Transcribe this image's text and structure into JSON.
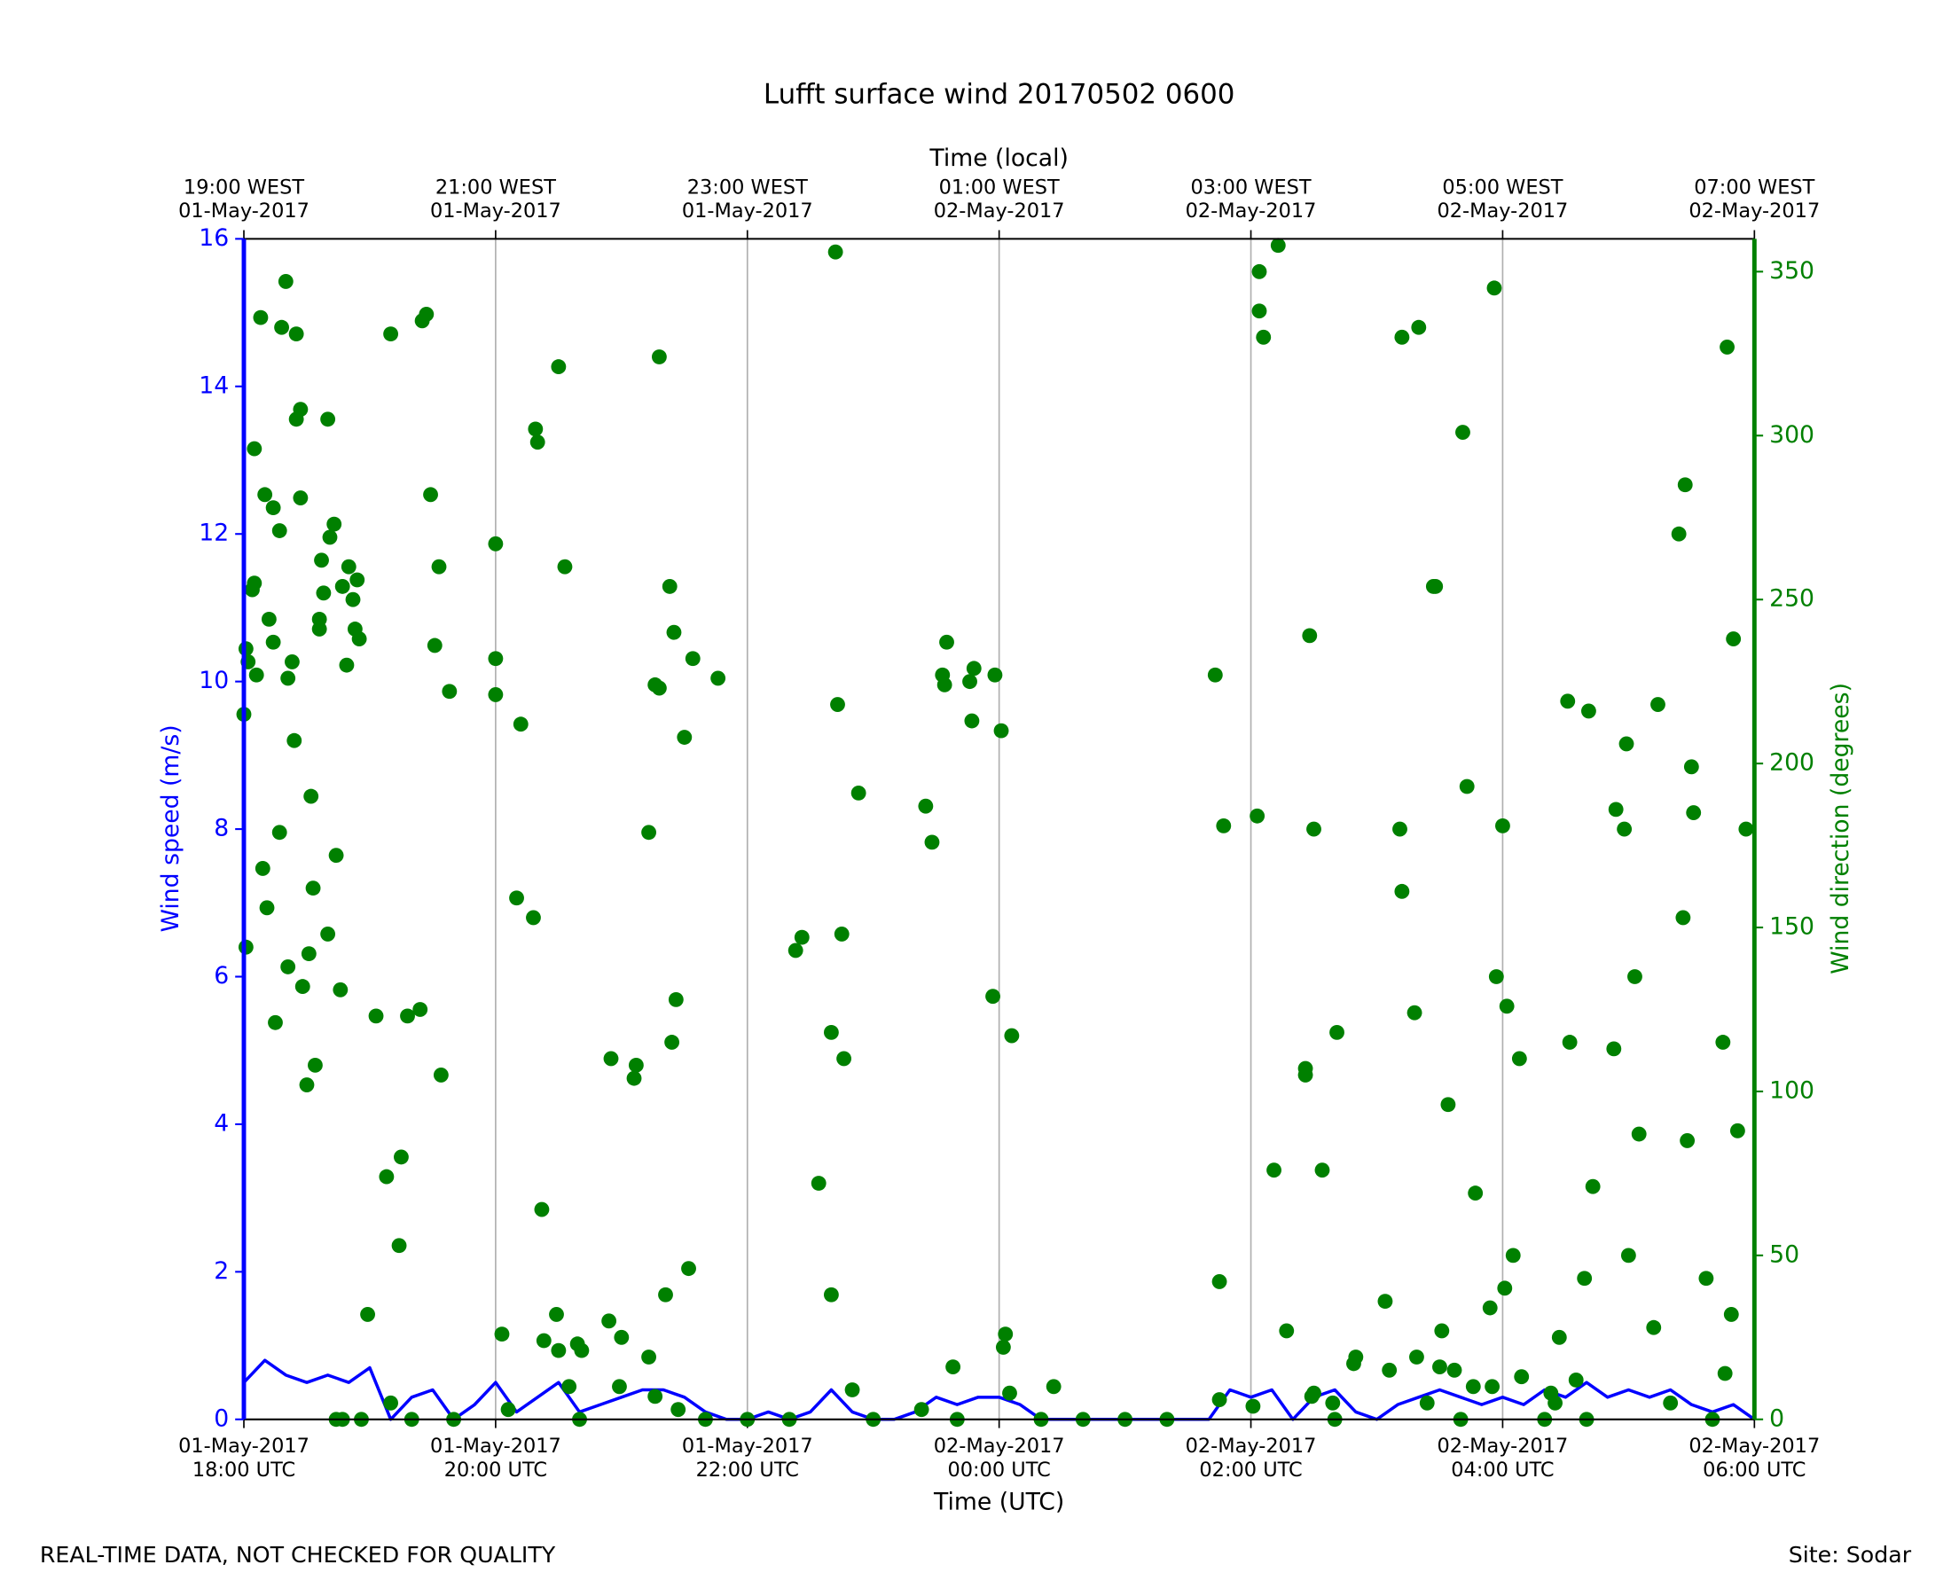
{
  "chart_data": {
    "type": "line+scatter",
    "title": "Lufft surface wind 20170502 0600",
    "xlabel": "Time (UTC)",
    "x2label": "Time (local)",
    "ylabel": "Wind speed (m/s)",
    "y2label": "Wind direction (degrees)",
    "footer_left": "REAL-TIME DATA, NOT CHECKED FOR QUALITY",
    "footer_right": "Site: Sodar",
    "xlim": [
      "2017-05-01 18:00",
      "2017-05-02 06:00"
    ],
    "xticks": [
      {
        "value": "2017-05-01 18:00",
        "label": [
          "01-May-2017",
          "18:00 UTC"
        ]
      },
      {
        "value": "2017-05-01 20:00",
        "label": [
          "01-May-2017",
          "20:00 UTC"
        ]
      },
      {
        "value": "2017-05-01 22:00",
        "label": [
          "01-May-2017",
          "22:00 UTC"
        ]
      },
      {
        "value": "2017-05-02 00:00",
        "label": [
          "02-May-2017",
          "00:00 UTC"
        ]
      },
      {
        "value": "2017-05-02 02:00",
        "label": [
          "02-May-2017",
          "02:00 UTC"
        ]
      },
      {
        "value": "2017-05-02 04:00",
        "label": [
          "02-May-2017",
          "04:00 UTC"
        ]
      },
      {
        "value": "2017-05-02 06:00",
        "label": [
          "02-May-2017",
          "06:00 UTC"
        ]
      }
    ],
    "x2ticks": [
      {
        "value": "2017-05-01 18:00",
        "label": [
          "19:00 WEST",
          "01-May-2017"
        ]
      },
      {
        "value": "2017-05-01 20:00",
        "label": [
          "21:00 WEST",
          "01-May-2017"
        ]
      },
      {
        "value": "2017-05-01 22:00",
        "label": [
          "23:00 WEST",
          "01-May-2017"
        ]
      },
      {
        "value": "2017-05-02 00:00",
        "label": [
          "01:00 WEST",
          "02-May-2017"
        ]
      },
      {
        "value": "2017-05-02 02:00",
        "label": [
          "03:00 WEST",
          "02-May-2017"
        ]
      },
      {
        "value": "2017-05-02 04:00",
        "label": [
          "05:00 WEST",
          "02-May-2017"
        ]
      },
      {
        "value": "2017-05-02 06:00",
        "label": [
          "07:00 WEST",
          "02-May-2017"
        ]
      }
    ],
    "ylim": [
      0,
      16
    ],
    "yticks": [
      0,
      2,
      4,
      6,
      8,
      10,
      12,
      14,
      16
    ],
    "y2lim": [
      0,
      360
    ],
    "y2ticks": [
      0,
      50,
      100,
      150,
      200,
      250,
      300,
      350
    ],
    "grid": "x",
    "series": [
      {
        "type": "line",
        "axis": "y",
        "color": "#0000ff",
        "x": [
          "2017-05-01 18:00",
          "2017-05-01 18:10",
          "2017-05-01 18:20",
          "2017-05-01 18:30",
          "2017-05-01 18:40",
          "2017-05-01 18:50",
          "2017-05-01 19:00",
          "2017-05-01 19:10",
          "2017-05-01 19:20",
          "2017-05-01 19:30",
          "2017-05-01 19:40",
          "2017-05-01 19:50",
          "2017-05-01 20:00",
          "2017-05-01 20:10",
          "2017-05-01 20:20",
          "2017-05-01 20:30",
          "2017-05-01 20:40",
          "2017-05-01 20:50",
          "2017-05-01 21:00",
          "2017-05-01 21:10",
          "2017-05-01 21:20",
          "2017-05-01 21:30",
          "2017-05-01 21:40",
          "2017-05-01 21:50",
          "2017-05-01 22:00",
          "2017-05-01 22:10",
          "2017-05-01 22:20",
          "2017-05-01 22:30",
          "2017-05-01 22:40",
          "2017-05-01 22:50",
          "2017-05-01 23:00",
          "2017-05-01 23:10",
          "2017-05-01 23:20",
          "2017-05-01 23:30",
          "2017-05-01 23:40",
          "2017-05-01 23:50",
          "2017-05-02 00:00",
          "2017-05-02 00:10",
          "2017-05-02 00:20",
          "2017-05-02 00:30",
          "2017-05-02 00:40",
          "2017-05-02 00:50",
          "2017-05-02 01:00",
          "2017-05-02 01:10",
          "2017-05-02 01:20",
          "2017-05-02 01:30",
          "2017-05-02 01:40",
          "2017-05-02 01:50",
          "2017-05-02 02:00",
          "2017-05-02 02:10",
          "2017-05-02 02:20",
          "2017-05-02 02:30",
          "2017-05-02 02:40",
          "2017-05-02 02:50",
          "2017-05-02 03:00",
          "2017-05-02 03:10",
          "2017-05-02 03:20",
          "2017-05-02 03:30",
          "2017-05-02 03:40",
          "2017-05-02 03:50",
          "2017-05-02 04:00",
          "2017-05-02 04:10",
          "2017-05-02 04:20",
          "2017-05-02 04:30",
          "2017-05-02 04:40",
          "2017-05-02 04:50",
          "2017-05-02 05:00",
          "2017-05-02 05:10",
          "2017-05-02 05:20",
          "2017-05-02 05:30",
          "2017-05-02 05:40",
          "2017-05-02 05:50",
          "2017-05-02 06:00"
        ],
        "values": [
          0.5,
          0.8,
          0.6,
          0.5,
          0.6,
          0.5,
          0.7,
          0.0,
          0.3,
          0.4,
          0.0,
          0.2,
          0.5,
          0.1,
          0.3,
          0.5,
          0.1,
          0.2,
          0.3,
          0.4,
          0.4,
          0.3,
          0.1,
          0.0,
          0.0,
          0.1,
          0.0,
          0.1,
          0.4,
          0.1,
          0.0,
          0.0,
          0.1,
          0.3,
          0.2,
          0.3,
          0.3,
          0.2,
          0.0,
          0.0,
          0.0,
          0.0,
          0.0,
          0.0,
          0.0,
          0.0,
          0.0,
          0.4,
          0.3,
          0.4,
          0.0,
          0.3,
          0.4,
          0.1,
          0.0,
          0.2,
          0.3,
          0.4,
          0.3,
          0.2,
          0.3,
          0.2,
          0.4,
          0.3,
          0.5,
          0.3,
          0.4,
          0.3,
          0.4,
          0.2,
          0.1,
          0.2,
          0.0
        ]
      },
      {
        "type": "scatter",
        "axis": "y2",
        "color": "#008000",
        "x": [
          "2017-05-01 18:00",
          "2017-05-01 18:01",
          "2017-05-01 18:01",
          "2017-05-01 18:02",
          "2017-05-01 18:04",
          "2017-05-01 18:05",
          "2017-05-01 18:05",
          "2017-05-01 18:06",
          "2017-05-01 18:08",
          "2017-05-01 18:09",
          "2017-05-01 18:10",
          "2017-05-01 18:11",
          "2017-05-01 18:12",
          "2017-05-01 18:14",
          "2017-05-01 18:14",
          "2017-05-01 18:15",
          "2017-05-01 18:17",
          "2017-05-01 18:17",
          "2017-05-01 18:18",
          "2017-05-01 18:20",
          "2017-05-01 18:21",
          "2017-05-01 18:21",
          "2017-05-01 18:23",
          "2017-05-01 18:24",
          "2017-05-01 18:25",
          "2017-05-01 18:25",
          "2017-05-01 18:27",
          "2017-05-01 18:27",
          "2017-05-01 18:28",
          "2017-05-01 18:30",
          "2017-05-01 18:31",
          "2017-05-01 18:32",
          "2017-05-01 18:33",
          "2017-05-01 18:34",
          "2017-05-01 18:36",
          "2017-05-01 18:36",
          "2017-05-01 18:37",
          "2017-05-01 18:38",
          "2017-05-01 18:40",
          "2017-05-01 18:40",
          "2017-05-01 18:41",
          "2017-05-01 18:43",
          "2017-05-01 18:44",
          "2017-05-01 18:44",
          "2017-05-01 18:46",
          "2017-05-01 18:47",
          "2017-05-01 18:47",
          "2017-05-01 18:49",
          "2017-05-01 18:50",
          "2017-05-01 18:52",
          "2017-05-01 18:53",
          "2017-05-01 18:54",
          "2017-05-01 18:55",
          "2017-05-01 18:56",
          "2017-05-01 18:59",
          "2017-05-01 19:03",
          "2017-05-01 19:08",
          "2017-05-01 19:10",
          "2017-05-01 19:10",
          "2017-05-01 19:14",
          "2017-05-01 19:15",
          "2017-05-01 19:18",
          "2017-05-01 19:24",
          "2017-05-01 19:25",
          "2017-05-01 19:27",
          "2017-05-01 19:29",
          "2017-05-01 19:31",
          "2017-05-01 19:33",
          "2017-05-01 19:34",
          "2017-05-01 19:38",
          "2017-05-01 20:00",
          "2017-05-01 20:00",
          "2017-05-01 20:00",
          "2017-05-01 20:03",
          "2017-05-01 20:06",
          "2017-05-01 20:10",
          "2017-05-01 20:12",
          "2017-05-01 20:18",
          "2017-05-01 20:19",
          "2017-05-01 20:20",
          "2017-05-01 20:22",
          "2017-05-01 20:23",
          "2017-05-01 20:29",
          "2017-05-01 20:30",
          "2017-05-01 20:30",
          "2017-05-01 20:33",
          "2017-05-01 20:35",
          "2017-05-01 20:39",
          "2017-05-01 20:41",
          "2017-05-01 20:54",
          "2017-05-01 20:55",
          "2017-05-01 20:59",
          "2017-05-01 21:00",
          "2017-05-01 21:06",
          "2017-05-01 21:07",
          "2017-05-01 21:13",
          "2017-05-01 21:13",
          "2017-05-01 21:16",
          "2017-05-01 21:16",
          "2017-05-01 21:18",
          "2017-05-01 21:18",
          "2017-05-01 21:21",
          "2017-05-01 21:23",
          "2017-05-01 21:24",
          "2017-05-01 21:25",
          "2017-05-01 21:26",
          "2017-05-01 21:27",
          "2017-05-01 21:30",
          "2017-05-01 21:32",
          "2017-05-01 21:34",
          "2017-05-01 21:46",
          "2017-05-01 22:23",
          "2017-05-01 22:26",
          "2017-05-01 22:34",
          "2017-05-01 22:40",
          "2017-05-01 22:40",
          "2017-05-01 22:42",
          "2017-05-01 22:43",
          "2017-05-01 22:45",
          "2017-05-01 22:46",
          "2017-05-01 22:50",
          "2017-05-01 22:53",
          "2017-05-01 23:23",
          "2017-05-01 23:25",
          "2017-05-01 23:28",
          "2017-05-01 23:33",
          "2017-05-01 23:34",
          "2017-05-01 23:35",
          "2017-05-01 23:38",
          "2017-05-01 23:46",
          "2017-05-01 23:47",
          "2017-05-01 23:48",
          "2017-05-01 23:57",
          "2017-05-01 23:58",
          "2017-05-02 00:01",
          "2017-05-02 00:02",
          "2017-05-02 00:03",
          "2017-05-02 00:05",
          "2017-05-02 00:06",
          "2017-05-02 00:26",
          "2017-05-02 01:43",
          "2017-05-02 01:45",
          "2017-05-02 01:45",
          "2017-05-02 01:47",
          "2017-05-02 02:01",
          "2017-05-02 02:03",
          "2017-05-02 02:04",
          "2017-05-02 02:04",
          "2017-05-02 02:06",
          "2017-05-02 02:11",
          "2017-05-02 02:13",
          "2017-05-02 02:17",
          "2017-05-02 02:26",
          "2017-05-02 02:26",
          "2017-05-02 02:28",
          "2017-05-02 02:29",
          "2017-05-02 02:30",
          "2017-05-02 02:30",
          "2017-05-02 02:34",
          "2017-05-02 02:39",
          "2017-05-02 02:41",
          "2017-05-02 02:49",
          "2017-05-02 02:50",
          "2017-05-02 03:04",
          "2017-05-02 03:06",
          "2017-05-02 03:11",
          "2017-05-02 03:12",
          "2017-05-02 03:12",
          "2017-05-02 03:18",
          "2017-05-02 03:19",
          "2017-05-02 03:20",
          "2017-05-02 03:24",
          "2017-05-02 03:27",
          "2017-05-02 03:28",
          "2017-05-02 03:30",
          "2017-05-02 03:31",
          "2017-05-02 03:34",
          "2017-05-02 03:37",
          "2017-05-02 03:41",
          "2017-05-02 03:43",
          "2017-05-02 03:46",
          "2017-05-02 03:47",
          "2017-05-02 03:54",
          "2017-05-02 03:55",
          "2017-05-02 03:56",
          "2017-05-02 03:57",
          "2017-05-02 04:00",
          "2017-05-02 04:01",
          "2017-05-02 04:02",
          "2017-05-02 04:05",
          "2017-05-02 04:08",
          "2017-05-02 04:09",
          "2017-05-02 04:23",
          "2017-05-02 04:25",
          "2017-05-02 04:27",
          "2017-05-02 04:31",
          "2017-05-02 04:32",
          "2017-05-02 04:35",
          "2017-05-02 04:39",
          "2017-05-02 04:41",
          "2017-05-02 04:43",
          "2017-05-02 04:53",
          "2017-05-02 04:54",
          "2017-05-02 04:58",
          "2017-05-02 04:59",
          "2017-05-02 05:00",
          "2017-05-02 05:03",
          "2017-05-02 05:05",
          "2017-05-02 05:12",
          "2017-05-02 05:14",
          "2017-05-02 05:20",
          "2017-05-02 05:24",
          "2017-05-02 05:26",
          "2017-05-02 05:27",
          "2017-05-02 05:28",
          "2017-05-02 05:30",
          "2017-05-02 05:31",
          "2017-05-02 05:37",
          "2017-05-02 05:45",
          "2017-05-02 05:46",
          "2017-05-02 05:47",
          "2017-05-02 05:49",
          "2017-05-02 05:50",
          "2017-05-02 05:52",
          "2017-05-02 05:56",
          "2017-05-01 19:20",
          "2017-05-01 19:40",
          "2017-05-01 20:40",
          "2017-05-01 21:40",
          "2017-05-01 22:00",
          "2017-05-01 22:20",
          "2017-05-01 23:00",
          "2017-05-01 23:40",
          "2017-05-02 00:20",
          "2017-05-02 00:40",
          "2017-05-02 01:00",
          "2017-05-02 01:20",
          "2017-05-02 02:40",
          "2017-05-02 03:40",
          "2017-05-02 04:20",
          "2017-05-02 04:40",
          "2017-05-02 05:40"
        ],
        "values": [
          215,
          144,
          235,
          231,
          253,
          296,
          255,
          227,
          336,
          168,
          282,
          156,
          244,
          237,
          278,
          121,
          271,
          179,
          333,
          347,
          138,
          226,
          231,
          207,
          331,
          305,
          308,
          281,
          132,
          102,
          142,
          190,
          162,
          108,
          244,
          241,
          262,
          252,
          305,
          148,
          269,
          273,
          172,
          0,
          131,
          254,
          0,
          230,
          260,
          250,
          241,
          256,
          238,
          0,
          32,
          123,
          74,
          5,
          331,
          53,
          80,
          123,
          125,
          335,
          337,
          282,
          236,
          260,
          105,
          222,
          267,
          221,
          232,
          26,
          3,
          159,
          212,
          153,
          302,
          298,
          64,
          24,
          32,
          21,
          321,
          260,
          10,
          23,
          21,
          30,
          110,
          10,
          25,
          104,
          108,
          19,
          179,
          224,
          7,
          324,
          223,
          38,
          254,
          115,
          240,
          128,
          3,
          208,
          46,
          232,
          226,
          143,
          147,
          72,
          38,
          118,
          356,
          218,
          148,
          110,
          9,
          191,
          3,
          187,
          176,
          227,
          224,
          237,
          16,
          225,
          213,
          229,
          129,
          227,
          210,
          22,
          26,
          8,
          117,
          10,
          227,
          42,
          6,
          181,
          4,
          184,
          350,
          338,
          330,
          76,
          358,
          27,
          105,
          107,
          239,
          7,
          180,
          8,
          76,
          5,
          118,
          17,
          19,
          36,
          15,
          180,
          330,
          161,
          124,
          19,
          333,
          5,
          254,
          254,
          16,
          27,
          96,
          15,
          301,
          193,
          10,
          69,
          34,
          10,
          345,
          135,
          181,
          40,
          126,
          50,
          110,
          13,
          8,
          5,
          25,
          219,
          115,
          12,
          43,
          216,
          71,
          113,
          186,
          180,
          206,
          50,
          135,
          87,
          28,
          218,
          5,
          270,
          153,
          285,
          85,
          199,
          185,
          43,
          115,
          14,
          327,
          32,
          238,
          88,
          180,
          0,
          0,
          0,
          0,
          0,
          0,
          0,
          0,
          0,
          0,
          0,
          0,
          0,
          0,
          0,
          0,
          0
        ]
      }
    ]
  }
}
